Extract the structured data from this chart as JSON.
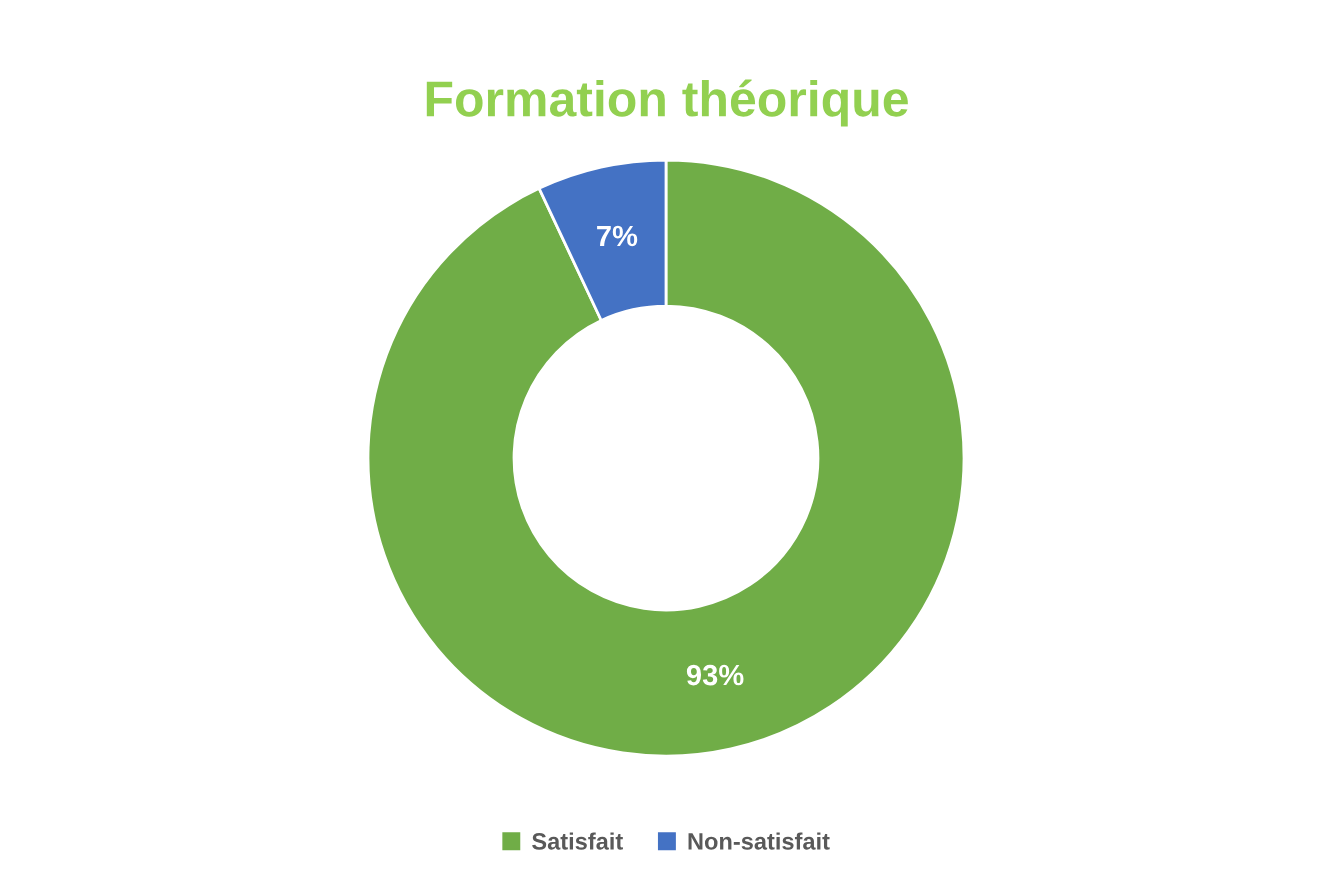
{
  "chart_data": {
    "type": "donut",
    "title": "Formation théorique",
    "categories": [
      "Satisfait",
      "Non-satisfait"
    ],
    "values": [
      93,
      7
    ],
    "colors": [
      "#70ad47",
      "#4472c4"
    ],
    "value_labels": [
      "93%",
      "7%"
    ],
    "legend": "bottom"
  }
}
